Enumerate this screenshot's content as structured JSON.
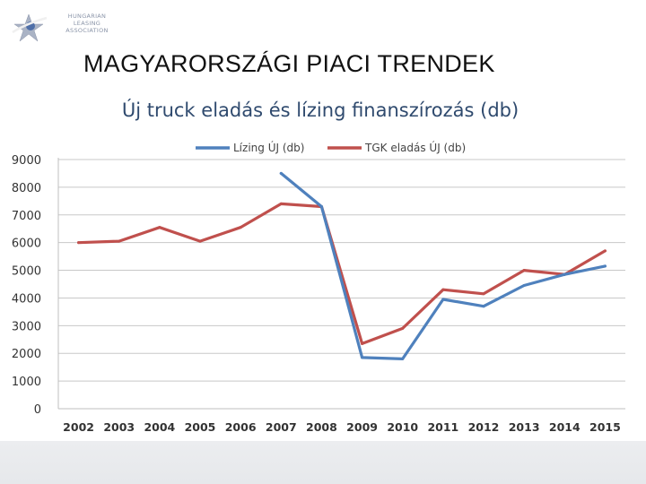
{
  "header": {
    "logo_text": [
      "HUNGARIAN",
      "LEASING",
      "ASSOCIATION"
    ],
    "page_title": "MAGYARORSZÁGI PIACI TRENDEK"
  },
  "chart_data": {
    "type": "line",
    "title": "Új truck eladás és lízing finanszírozás (db)",
    "xlabel": "",
    "ylabel": "",
    "categories": [
      "2002",
      "2003",
      "2004",
      "2005",
      "2006",
      "2007",
      "2008",
      "2009",
      "2010",
      "2011",
      "2012",
      "2013",
      "2014",
      "2015"
    ],
    "ylim": [
      0,
      9000
    ],
    "yticks": [
      0,
      1000,
      2000,
      3000,
      4000,
      5000,
      6000,
      7000,
      8000,
      9000
    ],
    "grid": true,
    "legend": "top",
    "series": [
      {
        "name": "Lízing ÚJ (db)",
        "color": "#4f81bd",
        "values": [
          null,
          null,
          null,
          null,
          null,
          8500,
          7300,
          1850,
          1800,
          3950,
          3700,
          4450,
          4850,
          5150
        ]
      },
      {
        "name": "TGK eladás ÚJ (db)",
        "color": "#c0504d",
        "values": [
          6000,
          6050,
          6550,
          6050,
          6550,
          7400,
          7300,
          2350,
          2900,
          4300,
          4150,
          5000,
          4850,
          5700
        ]
      }
    ]
  },
  "colors": {
    "title_blue": "#2f4a6e",
    "grid": "#c8c8c8"
  }
}
